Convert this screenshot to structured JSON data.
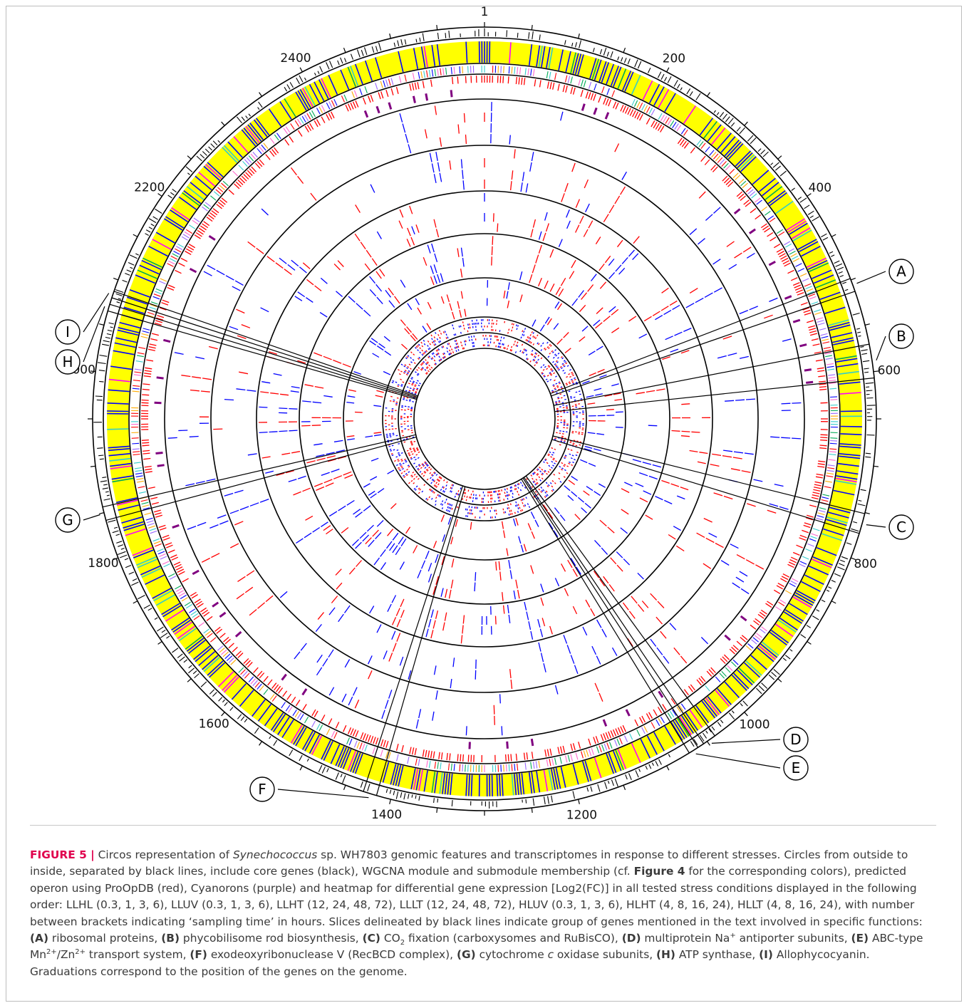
{
  "figure": {
    "position_labels": [
      "1",
      "200",
      "400",
      "600",
      "800",
      "1000",
      "1200",
      "1400",
      "1600",
      "1800",
      "2000",
      "2200",
      "2400"
    ],
    "callouts": [
      "A",
      "B",
      "C",
      "D",
      "E",
      "F",
      "G",
      "H",
      "I"
    ],
    "colors": {
      "core_genes": "#000000",
      "wgcna_primary": "#ffff00",
      "wgcna_secondary": "#0000ff",
      "wgcna_other": "#ff00ff",
      "operon": "#ff0000",
      "cyanoron": "#800080",
      "heatmap_up": "#ff0000",
      "heatmap_down": "#0000ff"
    }
  },
  "caption": {
    "label": "FIGURE 5 |",
    "t1": " Circos representation of ",
    "species": "Synechococcus",
    "t2": " sp. WH7803 genomic features and transcriptomes in response to different stresses. Circles from outside to inside, separated by black lines, include core genes (black), WGCNA module and submodule membership (cf. ",
    "fig_ref": "Figure 4",
    "t3": " for the corresponding colors), predicted operon using ProOpDB (red), Cyanorons (purple) and heatmap for differential gene expression [Log2(FC)] in all tested stress conditions displayed in the following order: LLHL (0.3, 1, 3, 6), LLUV (0.3, 1, 3, 6), LLHT (12, 24, 48, 72), LLLT (12, 24, 48, 72), HLUV (0.3, 1, 3, 6), HLHT (4, 8, 16, 24), HLLT (4, 8, 16, 24), with number between brackets indicating ‘sampling time’ in hours. Slices delineated by black lines indicate group of genes mentioned in the text involved in specific functions: ",
    "A": "(A)",
    "tA": " ribosomal proteins, ",
    "B": "(B)",
    "tB": " phycobilisome rod biosynthesis, ",
    "C": "(C)",
    "tC1": " CO",
    "tC_sub": "2",
    "tC2": " fixation (carboxysomes and RuBisCO), ",
    "D": "(D)",
    "tD1": " multiprotein Na",
    "tD_sup": "+",
    "tD2": " antiporter subunits, ",
    "E": "(E)",
    "tE1": " ABC-type Mn",
    "tE_sup1": "2+",
    "tE2": "/Zn",
    "tE_sup2": "2+",
    "tE3": " transport system, ",
    "F": "(F)",
    "tF": " exodeoxyribonuclease V (RecBCD complex), ",
    "G": "(G)",
    "tG1": " cytochrome ",
    "tG_italic": "c",
    "tG2": " oxidase subunits, ",
    "H": "(H)",
    "tH": " ATP synthase, ",
    "I": "(I)",
    "tI": " Allophycocyanin. Graduations correspond to the position of the genes on the genome."
  }
}
